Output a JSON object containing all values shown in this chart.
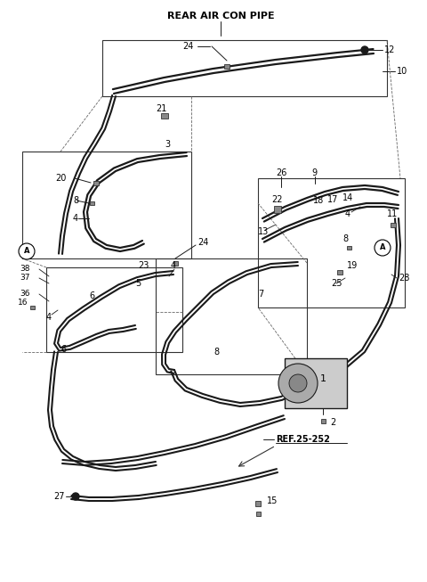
{
  "bg_color": "#ffffff",
  "line_color": "#1a1a1a",
  "fig_width": 4.8,
  "fig_height": 6.53,
  "dpi": 100,
  "header_text": "REAR AIR CON PIPE",
  "ref_text": "REF.25-252"
}
